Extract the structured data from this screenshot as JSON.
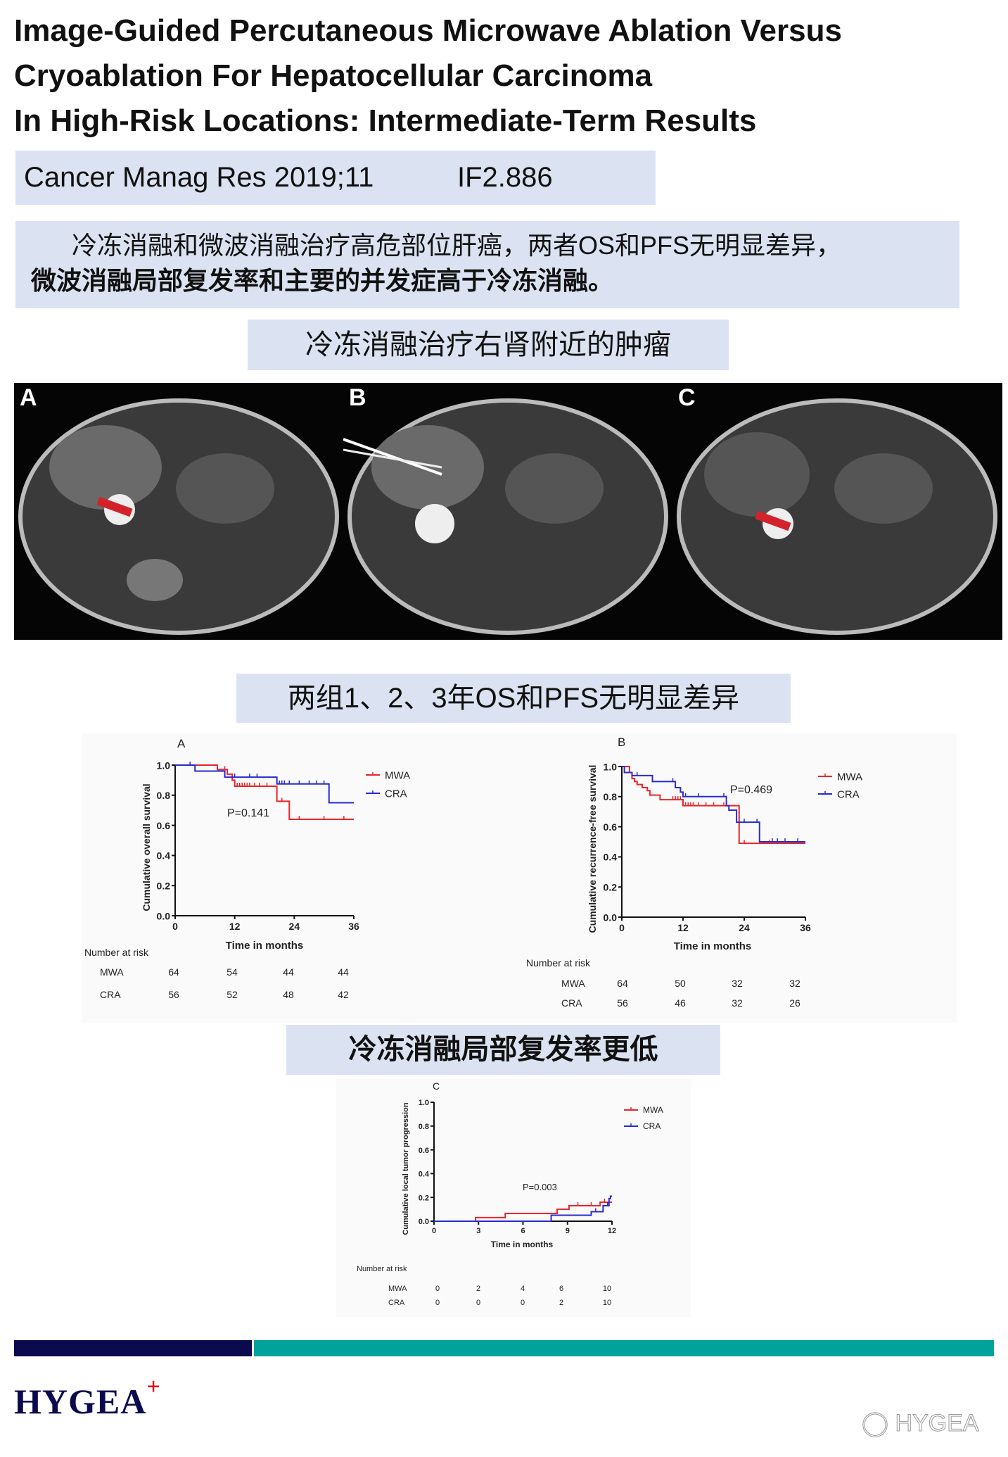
{
  "title": {
    "lines": [
      "Image-Guided Percutaneous Microwave Ablation Versus",
      "Cryoablation For Hepatocellular Carcinoma",
      "In High-Risk Locations: Intermediate-Term Results"
    ]
  },
  "citation": {
    "journal": "Cancer Manag Res 2019;11",
    "impact_factor": "IF2.886"
  },
  "summary": {
    "line1": "冷冻消融和微波消融治疗高危部位肝癌，两者OS和PFS无明显差异，",
    "line2": "微波消融局部复发率和主要的并发症高于冷冻消融。"
  },
  "section1": {
    "heading": "冷冻消融治疗右肾附近的肿瘤",
    "panels": [
      "A",
      "B",
      "C"
    ]
  },
  "section2": {
    "heading": "两组1、2、3年OS和PFS无明显差异"
  },
  "section3": {
    "heading": "冷冻消融局部复发率更低"
  },
  "colors": {
    "mwa": "#e8262b",
    "cra": "#2a2ad0",
    "box": "#dbe3f2",
    "bar_dark": "#0b0a4e",
    "bar_teal": "#00a29a",
    "logo_cross": "#e30613"
  },
  "chart_data": [
    {
      "type": "line",
      "panel": "A",
      "ylabel": "Cumulative overall survival",
      "xlabel": "Time in months",
      "xlim": [
        0,
        36
      ],
      "ylim": [
        0,
        1.0
      ],
      "xticks": [
        "0",
        "12",
        "24",
        "36"
      ],
      "yticks": [
        "0.0",
        "0.2",
        "0.4",
        "0.6",
        "0.8",
        "1.0"
      ],
      "annotation": "P=0.141",
      "legend": "top-right",
      "series": [
        {
          "name": "MWA",
          "color": "#e8262b",
          "steps": [
            [
              0,
              1
            ],
            [
              8.5,
              0.97
            ],
            [
              10.5,
              0.94
            ],
            [
              11.5,
              0.9
            ],
            [
              12,
              0.86
            ],
            [
              20.5,
              0.76
            ],
            [
              23,
              0.64
            ],
            [
              36,
              0.64
            ]
          ],
          "censored": [
            10,
            12.5,
            13,
            13.5,
            14,
            14.5,
            15,
            16,
            17,
            18.5,
            21.5,
            25,
            30,
            34
          ]
        },
        {
          "name": "CRA",
          "color": "#2a2ad0",
          "steps": [
            [
              0,
              1
            ],
            [
              4,
              0.96
            ],
            [
              10,
              0.92
            ],
            [
              20.5,
              0.875
            ],
            [
              31,
              0.75
            ],
            [
              36,
              0.75
            ]
          ],
          "censored": [
            3,
            12,
            15,
            16.5,
            21,
            21.5,
            22,
            23,
            25,
            27,
            28.5,
            30
          ]
        }
      ],
      "risk_table": {
        "title": "Number at risk",
        "rows": [
          {
            "label": "MWA",
            "values": [
              "64",
              "54",
              "44",
              "44"
            ]
          },
          {
            "label": "CRA",
            "values": [
              "56",
              "52",
              "48",
              "42"
            ]
          }
        ]
      }
    },
    {
      "type": "line",
      "panel": "B",
      "ylabel": "Cumulative recurrence-free survival",
      "xlabel": "Time in months",
      "xlim": [
        0,
        36
      ],
      "ylim": [
        0,
        1.0
      ],
      "xticks": [
        "0",
        "12",
        "24",
        "36"
      ],
      "yticks": [
        "0.0",
        "0.2",
        "0.4",
        "0.6",
        "0.8",
        "1.0"
      ],
      "annotation": "P=0.469",
      "legend": "top-right",
      "series": [
        {
          "name": "MWA",
          "color": "#e8262b",
          "steps": [
            [
              0,
              1
            ],
            [
              1.5,
              0.96
            ],
            [
              2,
              0.92
            ],
            [
              2.5,
              0.9
            ],
            [
              3,
              0.88
            ],
            [
              4,
              0.86
            ],
            [
              5,
              0.84
            ],
            [
              5.5,
              0.81
            ],
            [
              7.5,
              0.78
            ],
            [
              12,
              0.74
            ],
            [
              23,
              0.49
            ],
            [
              36,
              0.49
            ]
          ],
          "censored": [
            10,
            10.5,
            11,
            11.5,
            12.5,
            13,
            13.5,
            14,
            15,
            16.5,
            18,
            20,
            24,
            29
          ]
        },
        {
          "name": "CRA",
          "color": "#2a2ad0",
          "steps": [
            [
              0,
              1
            ],
            [
              0.5,
              0.96
            ],
            [
              2,
              0.94
            ],
            [
              6,
              0.9
            ],
            [
              10.5,
              0.86
            ],
            [
              11.5,
              0.83
            ],
            [
              12,
              0.8
            ],
            [
              20.5,
              0.74
            ],
            [
              21,
              0.71
            ],
            [
              22.5,
              0.63
            ],
            [
              27,
              0.5
            ],
            [
              36,
              0.5
            ]
          ],
          "censored": [
            3,
            10,
            12.5,
            15,
            20,
            24,
            26.5,
            29.5,
            30.5,
            32,
            34.5
          ]
        }
      ],
      "risk_table": {
        "title": "Number at risk",
        "rows": [
          {
            "label": "MWA",
            "values": [
              "64",
              "50",
              "32",
              "32"
            ]
          },
          {
            "label": "CRA",
            "values": [
              "56",
              "46",
              "32",
              "26"
            ]
          }
        ]
      }
    },
    {
      "type": "line",
      "panel": "C",
      "ylabel": "Cumulative local tumor progression",
      "xlabel": "Time in months",
      "xlim": [
        0,
        12
      ],
      "ylim": [
        0,
        1.0
      ],
      "xticks": [
        "0",
        "3",
        "6",
        "9",
        "12"
      ],
      "yticks": [
        "0.0",
        "0.2",
        "0.4",
        "0.6",
        "0.8",
        "1.0"
      ],
      "annotation": "P=0.003",
      "legend": "top-right",
      "series": [
        {
          "name": "MWA",
          "color": "#e8262b",
          "steps": [
            [
              0,
              0
            ],
            [
              2.8,
              0.03
            ],
            [
              4.8,
              0.065
            ],
            [
              8.3,
              0.1
            ],
            [
              9.1,
              0.13
            ],
            [
              11.2,
              0.16
            ],
            [
              12,
              0.16
            ]
          ],
          "censored": [
            9.7,
            10.6,
            11.5
          ]
        },
        {
          "name": "CRA",
          "color": "#2a2ad0",
          "steps": [
            [
              0,
              0
            ],
            [
              7.9,
              0.05
            ],
            [
              10.6,
              0.08
            ],
            [
              11.4,
              0.13
            ],
            [
              11.8,
              0.19
            ],
            [
              11.9,
              0.21
            ],
            [
              12,
              0.21
            ]
          ],
          "censored": [
            10.9,
            11.7
          ]
        }
      ],
      "risk_table": {
        "title": "Number at risk",
        "rows": [
          {
            "label": "MWA",
            "values": [
              "0",
              "2",
              "4",
              "6",
              "10"
            ]
          },
          {
            "label": "CRA",
            "values": [
              "0",
              "0",
              "0",
              "2",
              "10"
            ]
          }
        ]
      }
    }
  ],
  "footer": {
    "logo": "HYGEA",
    "logo_mark": "+",
    "watermark": "HYGEA"
  }
}
